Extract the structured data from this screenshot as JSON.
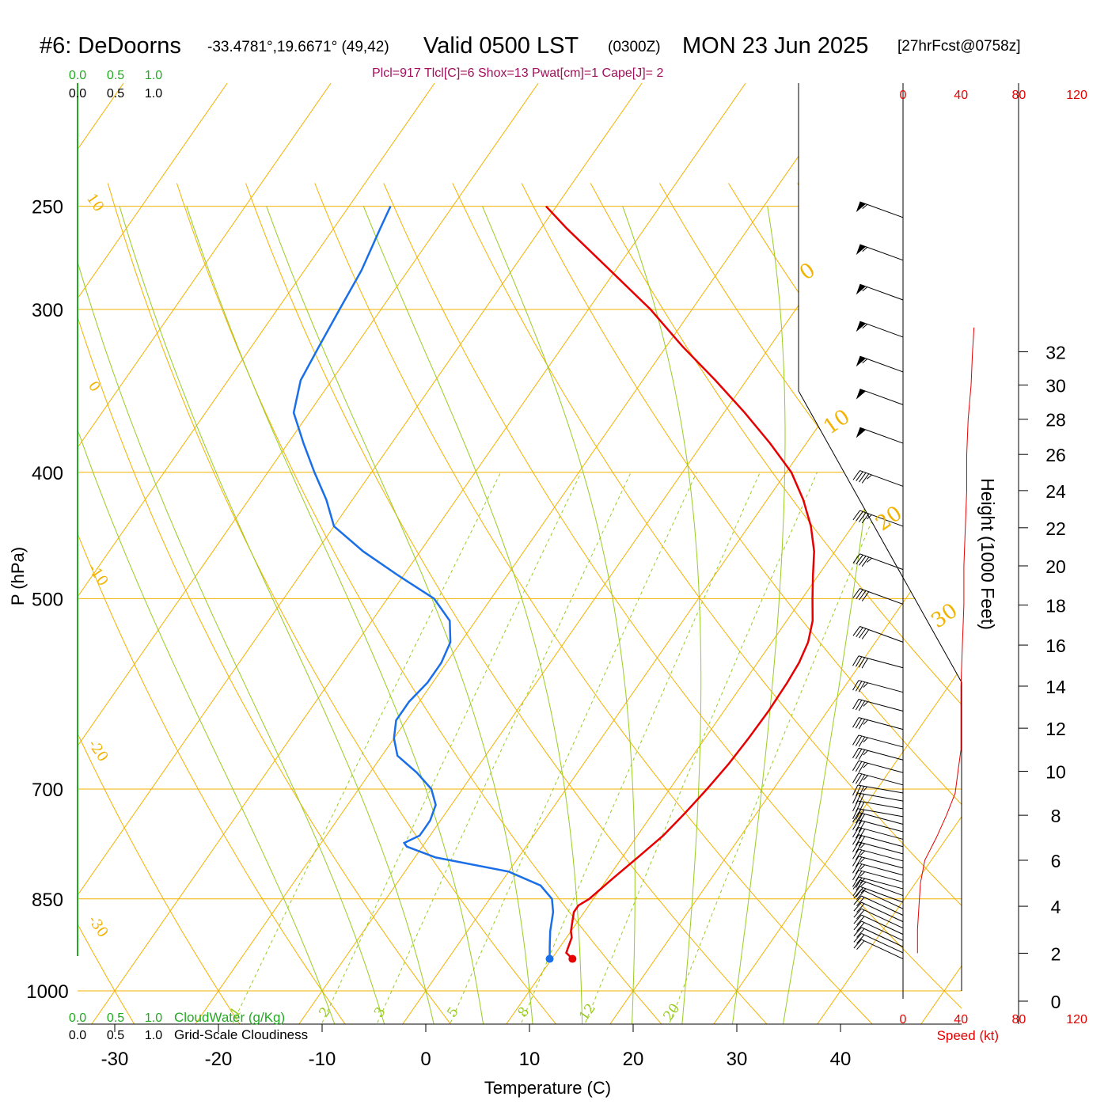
{
  "header": {
    "station": "#6: DeDoorns",
    "coords": "-33.4781°,19.6671° (49,42)",
    "valid": "Valid 0500 LST",
    "zulu": "(0300Z)",
    "date": "MON 23 Jun 2025",
    "fcst": "[27hrFcst@0758z]",
    "indices": "Plcl=917 Tlcl[C]=6 Shox=13 Pwat[cm]=1 Cape[J]= 2"
  },
  "colors": {
    "temperature": "#e60000",
    "dewpoint": "#1a6fe8",
    "isobars_isotherms": "#f2b200",
    "dry_adiabat": "#f2b200",
    "moist_adiabat": "#99cc22",
    "mixing_ratio": "#99cc22",
    "cloudwater": "#22aa22",
    "wind_speed": "#e60000"
  },
  "chart_data": {
    "type": "line",
    "xlabel": "Temperature (C)",
    "ylabel": "P (hPa)",
    "x_ticks": [
      "-30",
      "-20",
      "-10",
      "0",
      "10",
      "20",
      "30",
      "40"
    ],
    "y_ticks": [
      "250",
      "300",
      "400",
      "500",
      "700",
      "850",
      "1000"
    ],
    "height_axis_label": "Height (1000 Feet)",
    "height_ticks": [
      "0",
      "2",
      "4",
      "6",
      "8",
      "10",
      "12",
      "14",
      "16",
      "18",
      "20",
      "22",
      "24",
      "26",
      "28",
      "30",
      "32"
    ],
    "speed_label": "Speed (kt)",
    "speed_ticks": [
      "0",
      "40",
      "80",
      "120"
    ],
    "cloud_top_ticks": [
      "0.0",
      "0.5",
      "1.0"
    ],
    "cloud_labels": {
      "cloudwater": "CloudWater (g/Kg)",
      "cloudiness": "Grid-Scale Cloudiness"
    },
    "mixing_ratio_labels": [
      "1",
      "2",
      "3",
      "5",
      "8",
      "12",
      "20"
    ],
    "isotherm_labels_left": [
      "10",
      "0",
      "-10",
      "-20",
      "-30"
    ],
    "isotherm_labels_right": [
      "0",
      "10",
      "20",
      "30"
    ],
    "series": [
      {
        "name": "Temperature",
        "points": [
          [
            12.0,
            945
          ],
          [
            11.0,
            935
          ],
          [
            10.8,
            925
          ],
          [
            10.5,
            910
          ],
          [
            10.0,
            900
          ],
          [
            9.5,
            885
          ],
          [
            9.0,
            870
          ],
          [
            9.0,
            860
          ],
          [
            9.6,
            850
          ],
          [
            10.5,
            820
          ],
          [
            11.5,
            790
          ],
          [
            12.5,
            760
          ],
          [
            13.1,
            730
          ],
          [
            13.6,
            700
          ],
          [
            14.0,
            670
          ],
          [
            14.2,
            640
          ],
          [
            14.3,
            610
          ],
          [
            14.2,
            580
          ],
          [
            14.0,
            560
          ],
          [
            13.5,
            540
          ],
          [
            12.5,
            520
          ],
          [
            11.0,
            500
          ],
          [
            9.5,
            480
          ],
          [
            8.0,
            460
          ],
          [
            6.0,
            440
          ],
          [
            3.5,
            420
          ],
          [
            0.5,
            400
          ],
          [
            -3.5,
            380
          ],
          [
            -8.0,
            360
          ],
          [
            -13.0,
            340
          ],
          [
            -18.5,
            320
          ],
          [
            -24.0,
            300
          ],
          [
            -30.5,
            280
          ],
          [
            -37.5,
            260
          ],
          [
            -41.0,
            250
          ]
        ]
      },
      {
        "name": "Dewpoint",
        "points": [
          [
            9.8,
            945
          ],
          [
            9.0,
            925
          ],
          [
            8.0,
            900
          ],
          [
            7.0,
            870
          ],
          [
            6.0,
            850
          ],
          [
            4.0,
            830
          ],
          [
            0.0,
            810
          ],
          [
            -8.0,
            790
          ],
          [
            -11.5,
            775
          ],
          [
            -12.0,
            770
          ],
          [
            -11.0,
            760
          ],
          [
            -11.0,
            750
          ],
          [
            -11.0,
            740
          ],
          [
            -11.5,
            720
          ],
          [
            -13.0,
            700
          ],
          [
            -15.5,
            680
          ],
          [
            -18.5,
            660
          ],
          [
            -20.0,
            640
          ],
          [
            -21.0,
            620
          ],
          [
            -21.0,
            600
          ],
          [
            -20.5,
            580
          ],
          [
            -20.5,
            560
          ],
          [
            -21.0,
            540
          ],
          [
            -22.5,
            520
          ],
          [
            -25.5,
            500
          ],
          [
            -30.5,
            480
          ],
          [
            -35.5,
            460
          ],
          [
            -40.0,
            440
          ],
          [
            -42.5,
            420
          ],
          [
            -45.5,
            400
          ],
          [
            -48.5,
            380
          ],
          [
            -51.5,
            360
          ],
          [
            -53.0,
            340
          ],
          [
            -53.5,
            320
          ],
          [
            -54.0,
            300
          ],
          [
            -54.5,
            280
          ],
          [
            -55.5,
            260
          ],
          [
            -56.0,
            250
          ]
        ]
      }
    ],
    "wind_speed": [
      [
        2,
        10
      ],
      [
        3,
        10
      ],
      [
        4,
        11
      ],
      [
        5,
        12
      ],
      [
        6,
        15
      ],
      [
        7,
        23
      ],
      [
        8,
        30
      ],
      [
        9,
        36
      ],
      [
        10,
        38
      ],
      [
        11,
        40
      ],
      [
        12,
        40
      ],
      [
        14,
        40
      ],
      [
        16,
        41
      ],
      [
        18,
        42
      ],
      [
        20,
        42
      ],
      [
        22,
        43
      ],
      [
        24,
        44
      ],
      [
        26,
        44
      ],
      [
        28,
        45
      ],
      [
        30,
        47
      ],
      [
        32,
        48
      ],
      [
        33.5,
        49
      ]
    ],
    "wind_barbs": [
      {
        "p": 945,
        "dir": 295,
        "spd": 20
      },
      {
        "p": 935,
        "dir": 295,
        "spd": 20
      },
      {
        "p": 925,
        "dir": 295,
        "spd": 20
      },
      {
        "p": 915,
        "dir": 295,
        "spd": 20
      },
      {
        "p": 905,
        "dir": 295,
        "spd": 20
      },
      {
        "p": 895,
        "dir": 295,
        "spd": 20
      },
      {
        "p": 885,
        "dir": 295,
        "spd": 20
      },
      {
        "p": 875,
        "dir": 295,
        "spd": 20
      },
      {
        "p": 865,
        "dir": 295,
        "spd": 20
      },
      {
        "p": 855,
        "dir": 290,
        "spd": 25
      },
      {
        "p": 845,
        "dir": 290,
        "spd": 25
      },
      {
        "p": 835,
        "dir": 285,
        "spd": 25
      },
      {
        "p": 825,
        "dir": 285,
        "spd": 25
      },
      {
        "p": 815,
        "dir": 285,
        "spd": 25
      },
      {
        "p": 805,
        "dir": 285,
        "spd": 25
      },
      {
        "p": 795,
        "dir": 285,
        "spd": 25
      },
      {
        "p": 785,
        "dir": 285,
        "spd": 25
      },
      {
        "p": 775,
        "dir": 285,
        "spd": 30
      },
      {
        "p": 765,
        "dir": 285,
        "spd": 30
      },
      {
        "p": 755,
        "dir": 285,
        "spd": 30
      },
      {
        "p": 745,
        "dir": 285,
        "spd": 30
      },
      {
        "p": 735,
        "dir": 280,
        "spd": 30
      },
      {
        "p": 725,
        "dir": 280,
        "spd": 30
      },
      {
        "p": 715,
        "dir": 280,
        "spd": 30
      },
      {
        "p": 705,
        "dir": 280,
        "spd": 35
      },
      {
        "p": 695,
        "dir": 285,
        "spd": 35
      },
      {
        "p": 680,
        "dir": 285,
        "spd": 35
      },
      {
        "p": 665,
        "dir": 285,
        "spd": 35
      },
      {
        "p": 650,
        "dir": 285,
        "spd": 35
      },
      {
        "p": 630,
        "dir": 285,
        "spd": 35
      },
      {
        "p": 610,
        "dir": 285,
        "spd": 35
      },
      {
        "p": 590,
        "dir": 285,
        "spd": 35
      },
      {
        "p": 565,
        "dir": 285,
        "spd": 40
      },
      {
        "p": 540,
        "dir": 290,
        "spd": 40
      },
      {
        "p": 505,
        "dir": 290,
        "spd": 40
      },
      {
        "p": 475,
        "dir": 290,
        "spd": 45
      },
      {
        "p": 440,
        "dir": 290,
        "spd": 45
      },
      {
        "p": 410,
        "dir": 290,
        "spd": 45
      },
      {
        "p": 380,
        "dir": 290,
        "spd": 50
      },
      {
        "p": 355,
        "dir": 290,
        "spd": 50
      },
      {
        "p": 335,
        "dir": 290,
        "spd": 55
      },
      {
        "p": 315,
        "dir": 290,
        "spd": 55
      },
      {
        "p": 295,
        "dir": 290,
        "spd": 55
      },
      {
        "p": 275,
        "dir": 290,
        "spd": 55
      },
      {
        "p": 255,
        "dir": 290,
        "spd": 55
      }
    ]
  }
}
